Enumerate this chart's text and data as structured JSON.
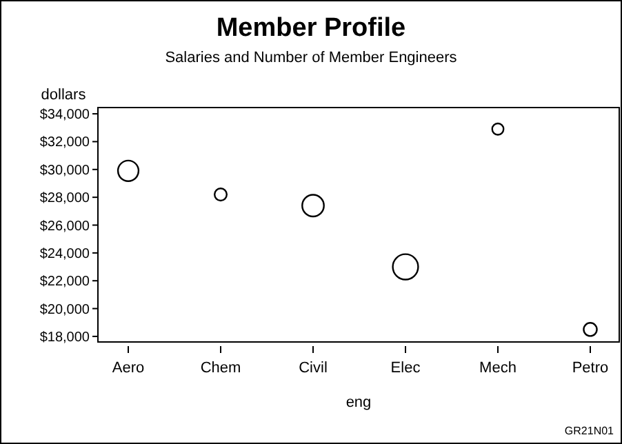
{
  "chart_data": {
    "type": "bubble",
    "title": "Member Profile",
    "subtitle": "Salaries and Number of Member Engineers",
    "xlabel": "eng",
    "ylabel": "dollars",
    "categories": [
      "Aero",
      "Chem",
      "Civil",
      "Elec",
      "Mech",
      "Petro"
    ],
    "values": [
      29900,
      28200,
      27400,
      23000,
      32900,
      18500
    ],
    "sizes": [
      0.66,
      0.23,
      0.73,
      1,
      0.2,
      0.27
    ],
    "color": "#000000",
    "ylim": [
      17600,
      34450
    ],
    "yticks": [
      {
        "value": 18000,
        "label": "$18,000"
      },
      {
        "value": 20000,
        "label": "$20,000"
      },
      {
        "value": 22000,
        "label": "$22,000"
      },
      {
        "value": 24000,
        "label": "$24,000"
      },
      {
        "value": 26000,
        "label": "$26,000"
      },
      {
        "value": 28000,
        "label": "$28,000"
      },
      {
        "value": 30000,
        "label": "$30,000"
      },
      {
        "value": 32000,
        "label": "$32,000"
      },
      {
        "value": 34000,
        "label": "$34,000"
      }
    ],
    "annotations": [
      "GR21N01"
    ]
  }
}
